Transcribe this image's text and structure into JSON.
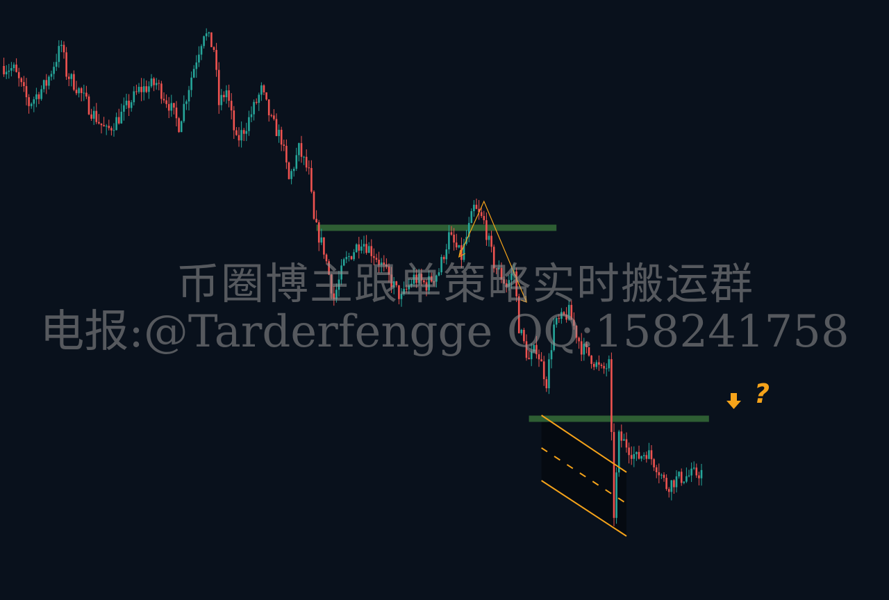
{
  "watermark": {
    "line1": "币圈博主跟单策略实时搬运群",
    "line2": "电报:@Tarderfengge QQ:158241758"
  },
  "annotation": {
    "question_mark": "?",
    "arrow_icon": "arrow-down-icon"
  },
  "colors": {
    "background": "#09111c",
    "up": "#26a69a",
    "down": "#ef5350",
    "zone": "#2e5e33",
    "annotation": "#f5a31a"
  },
  "chart_data": {
    "type": "candlestick",
    "title": "",
    "xlabel": "",
    "ylabel": "",
    "grid": false,
    "price_path": [
      [
        0,
        80.5
      ],
      [
        5,
        80
      ],
      [
        11,
        75
      ],
      [
        18,
        78
      ],
      [
        24,
        83.5
      ],
      [
        26,
        79.5
      ],
      [
        31,
        77
      ],
      [
        36,
        74
      ],
      [
        42,
        71
      ],
      [
        48,
        73.5
      ],
      [
        55,
        77
      ],
      [
        62,
        78
      ],
      [
        67,
        75
      ],
      [
        71,
        72
      ],
      [
        76,
        79
      ],
      [
        81,
        85.5
      ],
      [
        85,
        83
      ],
      [
        87,
        75
      ],
      [
        90,
        77
      ],
      [
        94,
        69.5
      ],
      [
        98,
        72
      ],
      [
        104,
        77
      ],
      [
        108,
        72.5
      ],
      [
        112,
        70
      ],
      [
        115,
        64
      ],
      [
        119,
        68.5
      ],
      [
        123,
        65
      ],
      [
        125,
        58
      ],
      [
        129,
        54
      ],
      [
        133,
        47
      ],
      [
        137,
        52
      ],
      [
        144,
        55.5
      ],
      [
        150,
        53
      ],
      [
        155,
        50
      ],
      [
        160,
        47
      ],
      [
        165,
        50
      ],
      [
        170,
        49
      ],
      [
        175,
        51
      ],
      [
        179,
        56
      ],
      [
        184,
        53
      ],
      [
        189,
        60
      ],
      [
        193,
        58
      ],
      [
        197,
        52
      ],
      [
        202,
        49
      ],
      [
        205,
        51
      ],
      [
        207,
        43
      ],
      [
        211,
        38
      ],
      [
        214,
        40
      ],
      [
        218,
        35
      ],
      [
        221,
        43
      ],
      [
        227,
        45
      ],
      [
        232,
        40
      ],
      [
        236,
        38.5
      ],
      [
        240,
        36.5
      ],
      [
        243,
        37.5
      ],
      [
        245,
        16
      ],
      [
        247,
        27
      ],
      [
        250,
        26
      ],
      [
        254,
        24
      ],
      [
        258,
        25
      ],
      [
        262,
        23
      ],
      [
        266,
        20
      ],
      [
        270,
        21
      ],
      [
        280,
        22
      ]
    ],
    "ylim": [
      5,
      90
    ],
    "zones": [
      {
        "level": 57.2,
        "from_index": 126,
        "to_index": 222
      },
      {
        "level": 29.7,
        "from_index": 211,
        "to_index": 283
      }
    ],
    "projection_path": [
      [
        183,
        53
      ],
      [
        193,
        61
      ],
      [
        210,
        46.5
      ]
    ],
    "channel": {
      "from_index": 216,
      "to_index": 250,
      "upper": [
        30.2,
        22
      ],
      "middle": [
        25.5,
        17.5
      ],
      "lower": [
        20.8,
        12.8
      ]
    }
  }
}
